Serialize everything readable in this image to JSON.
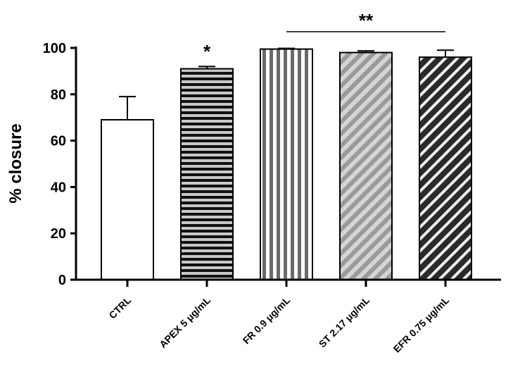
{
  "chart_data": {
    "type": "bar",
    "y_label": "% closure",
    "categories": [
      "CTRL",
      "APEX 5 μg/mL",
      "FR 0.9 μg/mL",
      "ST 2.17 μg/mL",
      "EFR 0.75 μg/mL"
    ],
    "values": [
      69,
      91,
      99.5,
      98,
      96
    ],
    "errors": [
      10,
      1,
      0.3,
      0.7,
      3
    ],
    "ylim": [
      0,
      100
    ],
    "yticks": [
      0,
      20,
      40,
      60,
      80,
      100
    ],
    "annotations": [
      "*",
      "**"
    ]
  }
}
